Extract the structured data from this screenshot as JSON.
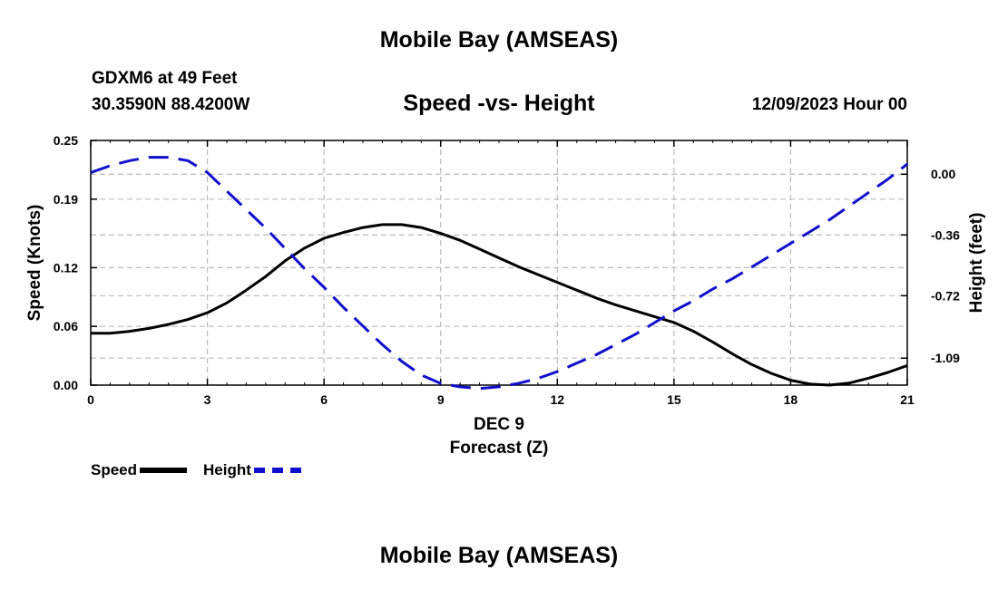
{
  "header": {
    "title": "Mobile Bay (AMSEAS)",
    "station": "GDXM6 at 49 Feet",
    "coords": "30.3590N  88.4200W",
    "chart_title": "Speed -vs- Height",
    "forecast_time": "12/09/2023 Hour 00"
  },
  "footer": {
    "title": "Mobile Bay (AMSEAS)"
  },
  "legend": {
    "speed": "Speed",
    "height": "Height"
  },
  "colors": {
    "speed": "#000000",
    "height": "#1010cc",
    "grid": "#bbbbbb"
  },
  "chart_data": {
    "type": "line",
    "title": "Speed -vs- Height",
    "xlabel": "Forecast (Z)",
    "xlabel_date": "DEC 9",
    "ylabel_left": "Speed (Knots)",
    "ylabel_right": "Height (feet)",
    "xlim": [
      0,
      21
    ],
    "ylim_left": [
      0,
      0.25
    ],
    "ylim_right": [
      -1.25,
      0.2
    ],
    "x_ticks": [
      0,
      3,
      6,
      9,
      12,
      15,
      18,
      21
    ],
    "x_tick_labels": [
      "0",
      "3",
      "6",
      "9",
      "12",
      "15",
      "18",
      "21"
    ],
    "y_left_ticks": [
      0,
      0.06,
      0.12,
      0.19,
      0.25
    ],
    "y_left_tick_labels": [
      "0.00",
      "0.06",
      "0.12",
      "0.19",
      "0.25"
    ],
    "y_right_ticks": [
      0.0,
      -0.36,
      -0.72,
      -1.09
    ],
    "y_right_tick_labels": [
      "0.00",
      "-0.36",
      "-0.72",
      "-1.09"
    ],
    "x": [
      0,
      0.5,
      1,
      1.5,
      2,
      2.5,
      3,
      3.5,
      4,
      4.5,
      5,
      5.5,
      6,
      6.5,
      7,
      7.5,
      8,
      8.5,
      9,
      9.5,
      10,
      10.5,
      11,
      11.5,
      12,
      12.5,
      13,
      13.5,
      14,
      14.5,
      15,
      15.5,
      16,
      16.5,
      17,
      17.5,
      18,
      18.5,
      19,
      19.5,
      20,
      20.5,
      21
    ],
    "series": [
      {
        "name": "Speed",
        "axis": "left",
        "style": "solid",
        "values": [
          0.053,
          0.053,
          0.055,
          0.058,
          0.062,
          0.067,
          0.074,
          0.084,
          0.097,
          0.111,
          0.127,
          0.14,
          0.15,
          0.156,
          0.161,
          0.164,
          0.164,
          0.161,
          0.155,
          0.148,
          0.139,
          0.13,
          0.121,
          0.113,
          0.105,
          0.097,
          0.089,
          0.082,
          0.076,
          0.07,
          0.064,
          0.055,
          0.044,
          0.032,
          0.021,
          0.012,
          0.005,
          0.001,
          0.0,
          0.002,
          0.007,
          0.013,
          0.02
        ]
      },
      {
        "name": "Height",
        "axis": "right",
        "style": "dashed",
        "values": [
          0.01,
          0.05,
          0.08,
          0.1,
          0.1,
          0.08,
          0.01,
          -0.1,
          -0.21,
          -0.32,
          -0.44,
          -0.56,
          -0.67,
          -0.79,
          -0.9,
          -1.01,
          -1.11,
          -1.19,
          -1.24,
          -1.26,
          -1.27,
          -1.26,
          -1.24,
          -1.21,
          -1.17,
          -1.12,
          -1.07,
          -1.01,
          -0.95,
          -0.88,
          -0.81,
          -0.75,
          -0.68,
          -0.62,
          -0.55,
          -0.48,
          -0.41,
          -0.34,
          -0.27,
          -0.19,
          -0.11,
          -0.03,
          0.06
        ]
      }
    ]
  }
}
